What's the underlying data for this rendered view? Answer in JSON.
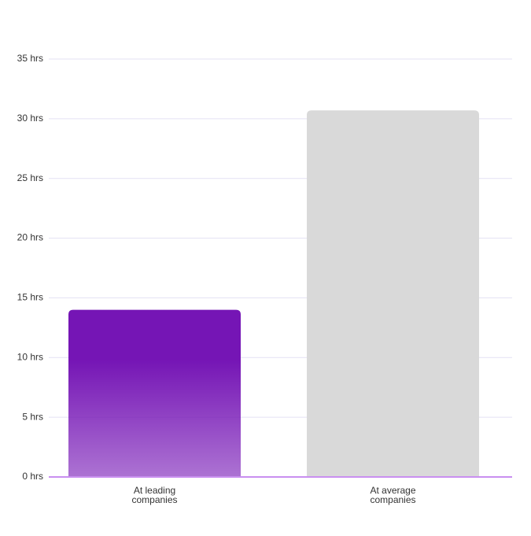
{
  "chart_data": {
    "type": "bar",
    "categories": [
      "At leading companies",
      "At average companies"
    ],
    "values": [
      14,
      30.7
    ],
    "colors": [
      "#7515b5",
      "#d9d9d9"
    ],
    "ylim": [
      0,
      35
    ],
    "yticks": [
      {
        "value": 0,
        "label": "0 hrs"
      },
      {
        "value": 5,
        "label": "5 hrs"
      },
      {
        "value": 10,
        "label": "10 hrs"
      },
      {
        "value": 15,
        "label": "15 hrs"
      },
      {
        "value": 20,
        "label": "20 hrs"
      },
      {
        "value": 25,
        "label": "25 hrs"
      },
      {
        "value": 30,
        "label": "30 hrs"
      },
      {
        "value": 35,
        "label": "35 hrs"
      }
    ],
    "grid": true
  }
}
